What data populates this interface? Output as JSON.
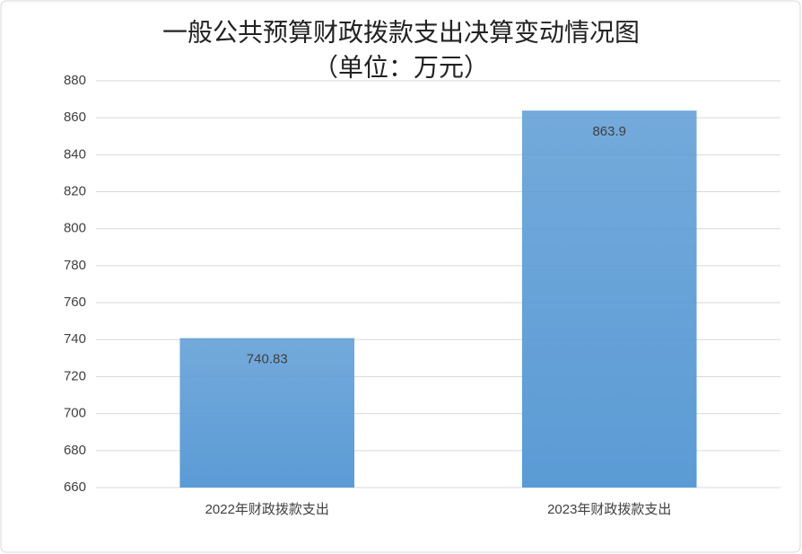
{
  "chart_data": {
    "type": "bar",
    "title": "一般公共预算财政拨款支出决算变动情况图",
    "subtitle": "（单位：万元）",
    "categories": [
      "2022年财政拨款支出",
      "2023年财政拨款支出"
    ],
    "values": [
      740.83,
      863.9
    ],
    "color": "#5b9bd5",
    "ylim": [
      660,
      880
    ],
    "yticks": [
      660,
      680,
      700,
      720,
      740,
      760,
      780,
      800,
      820,
      840,
      860,
      880
    ],
    "grid": true
  }
}
